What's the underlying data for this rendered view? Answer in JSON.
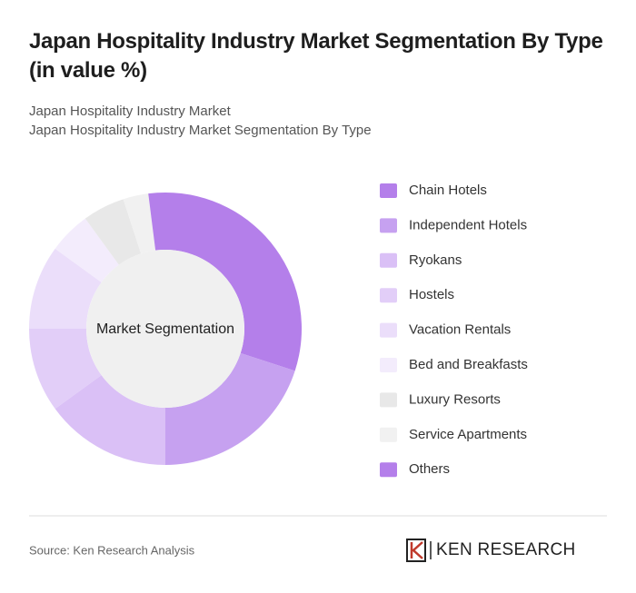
{
  "chart_data": {
    "type": "donut",
    "title": "Japan Hospitality Industry Market Segmentation By Type (in value %)",
    "subtitle_lines": [
      "Japan Hospitality Industry Market",
      "Japan Hospitality Industry Market Segmentation By Type"
    ],
    "center_label": "Market Segmentation",
    "series": [
      {
        "name": "Chain Hotels",
        "color": "#b47fea",
        "values": [
          30
        ]
      },
      {
        "name": "Independent Hotels",
        "color": "#c6a1f0",
        "values": [
          20
        ]
      },
      {
        "name": "Ryokans",
        "color": "#dac0f6",
        "values": [
          15
        ]
      },
      {
        "name": "Hostels",
        "color": "#e2cef8",
        "values": [
          10
        ]
      },
      {
        "name": "Vacation Rentals",
        "color": "#ebdefa",
        "values": [
          10
        ]
      },
      {
        "name": "Bed and Breakfasts",
        "color": "#f3ecfc",
        "values": [
          5
        ]
      },
      {
        "name": "Luxury Resorts",
        "color": "#e8e8e8",
        "values": [
          5
        ]
      },
      {
        "name": "Service Apartments",
        "color": "#f1f1f1",
        "values": [
          3
        ]
      },
      {
        "name": "Others",
        "color": "#b47fea",
        "values": [
          2
        ]
      }
    ],
    "source": "Source: Ken Research Analysis",
    "brand": "KEN RESEARCH"
  }
}
